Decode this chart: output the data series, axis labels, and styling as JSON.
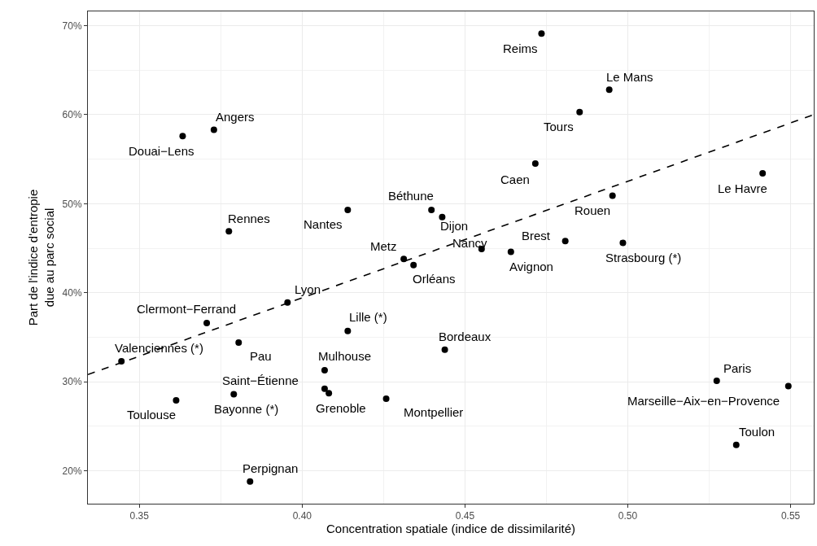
{
  "chart_data": {
    "type": "scatter",
    "xlabel": "Concentration spatiale (indice de dissimilarité)",
    "ylabel": "Part de l'indice d'entropie\ndue au parc social",
    "xlim": [
      0.3342,
      0.5571
    ],
    "xticks": [
      0.35,
      {
        "value": 0.4,
        "label": "0.40"
      },
      0.45,
      {
        "value": 0.5,
        "label": "0.50"
      },
      0.55
    ],
    "ylim": [
      16.3,
      71.6
    ],
    "yticks": [
      {
        "value": 20,
        "label": "20%"
      },
      {
        "value": 30,
        "label": "30%"
      },
      {
        "value": 40,
        "label": "40%"
      },
      {
        "value": 50,
        "label": "50%"
      },
      {
        "value": 60,
        "label": "60%"
      },
      {
        "value": 70,
        "label": "70%"
      }
    ],
    "grid": true,
    "series": [
      {
        "marker": "circle",
        "color": "#000000",
        "x": [
          0.3633,
          0.3729,
          0.3775,
          0.414,
          0.4397,
          0.4735,
          0.4943,
          0.4852,
          0.4716,
          0.5414,
          0.4953,
          0.443,
          0.4808,
          0.4985,
          0.4551,
          0.4641,
          0.4312,
          0.4342,
          0.3955,
          0.3707,
          0.414,
          0.3805,
          0.3445,
          0.4069,
          0.4069,
          0.4082,
          0.379,
          0.3613,
          0.4258,
          0.384,
          0.4438,
          0.5273,
          0.5493,
          0.5333
        ],
        "values": [
          57.6,
          58.3,
          46.9,
          49.3,
          49.3,
          69.1,
          62.8,
          60.3,
          54.5,
          53.4,
          50.9,
          48.5,
          45.8,
          45.6,
          44.9,
          44.6,
          43.8,
          43.1,
          38.9,
          36.6,
          35.7,
          34.4,
          32.3,
          31.3,
          29.2,
          28.7,
          28.6,
          27.9,
          28.1,
          18.8,
          33.6,
          30.1,
          29.5,
          22.9
        ]
      },
      {
        "type": "line",
        "line_style": "dashed",
        "color": "#000000",
        "x": [
          0.3342,
          0.5571
        ],
        "values": [
          30.8,
          60.0
        ]
      }
    ],
    "annotations": [
      {
        "text": "Douai−Lens",
        "x": 0.3633,
        "y": 57.6
      },
      {
        "text": "Angers",
        "x": 0.3729,
        "y": 58.3
      },
      {
        "text": "Rennes",
        "x": 0.3775,
        "y": 46.9
      },
      {
        "text": "Nantes",
        "x": 0.414,
        "y": 49.3
      },
      {
        "text": "Béthune",
        "x": 0.4397,
        "y": 49.3
      },
      {
        "text": "Reims",
        "x": 0.4735,
        "y": 69.1
      },
      {
        "text": "Le Mans",
        "x": 0.4943,
        "y": 62.8
      },
      {
        "text": "Tours",
        "x": 0.4852,
        "y": 60.3
      },
      {
        "text": "Caen",
        "x": 0.4716,
        "y": 54.5
      },
      {
        "text": "Le Havre",
        "x": 0.5414,
        "y": 53.4
      },
      {
        "text": "Rouen",
        "x": 0.4953,
        "y": 50.9
      },
      {
        "text": "Dijon",
        "x": 0.443,
        "y": 48.5
      },
      {
        "text": "Brest",
        "x": 0.4808,
        "y": 45.8
      },
      {
        "text": "Strasbourg (*)",
        "x": 0.4985,
        "y": 45.6
      },
      {
        "text": "Nancy",
        "x": 0.4551,
        "y": 44.9
      },
      {
        "text": "Avignon",
        "x": 0.4641,
        "y": 44.6
      },
      {
        "text": "Metz",
        "x": 0.4312,
        "y": 43.8
      },
      {
        "text": "Orléans",
        "x": 0.4342,
        "y": 43.1
      },
      {
        "text": "Lyon",
        "x": 0.3955,
        "y": 38.9
      },
      {
        "text": "Clermont−Ferrand",
        "x": 0.3707,
        "y": 36.6
      },
      {
        "text": "Lille (*)",
        "x": 0.414,
        "y": 35.7
      },
      {
        "text": "Pau",
        "x": 0.3805,
        "y": 34.4
      },
      {
        "text": "Valenciennes (*)",
        "x": 0.3445,
        "y": 32.3
      },
      {
        "text": "Mulhouse",
        "x": 0.4069,
        "y": 31.3
      },
      {
        "text": "Saint−Étienne",
        "x": 0.4069,
        "y": 29.2
      },
      {
        "text": "Grenoble",
        "x": 0.4082,
        "y": 28.7
      },
      {
        "text": "Bayonne (*)",
        "x": 0.379,
        "y": 28.6
      },
      {
        "text": "Toulouse",
        "x": 0.3613,
        "y": 27.9
      },
      {
        "text": "Montpellier",
        "x": 0.4258,
        "y": 28.1
      },
      {
        "text": "Perpignan",
        "x": 0.384,
        "y": 18.8
      },
      {
        "text": "Bordeaux",
        "x": 0.4438,
        "y": 33.6
      },
      {
        "text": "Paris",
        "x": 0.5273,
        "y": 30.1
      },
      {
        "text": "Marseille−Aix−en−Provence",
        "x": 0.5493,
        "y": 29.5
      },
      {
        "text": "Toulon",
        "x": 0.5333,
        "y": 22.9
      }
    ]
  }
}
